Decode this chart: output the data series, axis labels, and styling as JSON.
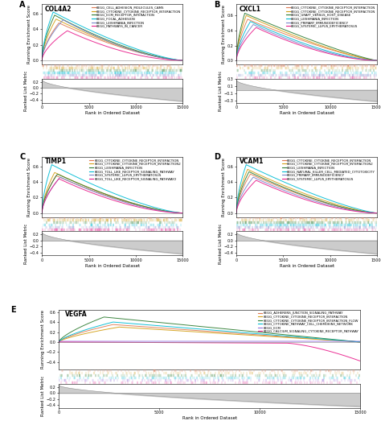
{
  "panels": [
    {
      "label": "A",
      "gene": "COL4A2",
      "legend_entries": [
        {
          "label": "KEGG_CELL_ADHESION_MOLECULES_CAMS",
          "color": "#e07b54"
        },
        {
          "label": "KEGG_CYTOKINE_CYTOKINE_RECEPTOR_INTERACTION",
          "color": "#d4a017"
        },
        {
          "label": "KEGG_ECM_RECEPTOR_INTERACTION",
          "color": "#2e7d32"
        },
        {
          "label": "KEGG_FOCAL_ADHESION",
          "color": "#00bcd4"
        },
        {
          "label": "KEGG_LEISHMANIA_INFECTION",
          "color": "#7986cb"
        },
        {
          "label": "KEGG_PATHWAYS_IN_CANCER",
          "color": "#e91e8c"
        }
      ],
      "es_peaks": [
        0.48,
        0.53,
        0.58,
        0.62,
        0.52,
        0.38
      ],
      "peak_fracs": [
        0.12,
        0.1,
        0.09,
        0.08,
        0.15,
        0.18
      ],
      "desc_exp": [
        1.5,
        1.5,
        1.5,
        1.4,
        1.6,
        1.8
      ],
      "ylim": [
        -0.05,
        0.72
      ],
      "yticks": [
        0.0,
        0.2,
        0.4,
        0.6
      ],
      "metric_ylim": [
        -0.5,
        0.3
      ],
      "metric_yticks": [
        -0.4,
        -0.2,
        0.0,
        0.2
      ]
    },
    {
      "label": "B",
      "gene": "CXCL1",
      "legend_entries": [
        {
          "label": "KEGG_CYTOKINE_CYTOKINE_RECEPTOR_INTERACTION",
          "color": "#e07b54"
        },
        {
          "label": "KEGG_CYTOKINE_CYTOKINE_RECEPTOR_INTERACTION",
          "color": "#d4a017"
        },
        {
          "label": "KEGG_GRAFT_VERSUS_HOST_DISEASE",
          "color": "#2e7d32"
        },
        {
          "label": "KEGG_LEISHMANIA_INFECTION",
          "color": "#00bcd4"
        },
        {
          "label": "KEGG_PRIMARY_IMMUNODEFICIENCY",
          "color": "#7986cb"
        },
        {
          "label": "KEGG_SYSTEMIC_LUPUS_ERYTHEMATOSUS",
          "color": "#e91e8c"
        }
      ],
      "es_peaks": [
        0.55,
        0.6,
        0.63,
        0.52,
        0.48,
        0.44
      ],
      "peak_fracs": [
        0.08,
        0.07,
        0.06,
        0.1,
        0.12,
        0.14
      ],
      "desc_exp": [
        1.3,
        1.3,
        1.2,
        1.5,
        1.6,
        1.7
      ],
      "ylim": [
        -0.05,
        0.75
      ],
      "yticks": [
        0.0,
        0.2,
        0.4,
        0.6
      ],
      "metric_ylim": [
        -0.35,
        0.3
      ],
      "metric_yticks": [
        -0.3,
        -0.1,
        0.1,
        0.3
      ]
    },
    {
      "label": "C",
      "gene": "TIMP1",
      "legend_entries": [
        {
          "label": "KEGG_CYTOKINE_CYTOKINE_RECEPTOR_INTERACTION",
          "color": "#e07b54"
        },
        {
          "label": "KEGG_CYTOKINE_CYTOKINE_RECEPTOR_INTERACTION2",
          "color": "#d4a017"
        },
        {
          "label": "KEGG_LEISHMANIA_INFECTION",
          "color": "#2e7d32"
        },
        {
          "label": "KEGG_TOLL_LIKE_RECEPTOR_SIGNALING_PATHWAY",
          "color": "#00bcd4"
        },
        {
          "label": "KEGG_SYSTEMIC_LUPUS_ERYTHEMATOSUS",
          "color": "#7986cb"
        },
        {
          "label": "KEGG_TOLL_LIKE_RECEPTOR_SIGNALING_PATHWAY2",
          "color": "#e91e8c"
        }
      ],
      "es_peaks": [
        0.48,
        0.52,
        0.5,
        0.62,
        0.46,
        0.44
      ],
      "peak_fracs": [
        0.1,
        0.09,
        0.11,
        0.07,
        0.13,
        0.12
      ],
      "desc_exp": [
        1.5,
        1.5,
        1.5,
        1.4,
        1.6,
        1.7
      ],
      "ylim": [
        -0.05,
        0.72
      ],
      "yticks": [
        0.0,
        0.2,
        0.4,
        0.6
      ],
      "metric_ylim": [
        -0.5,
        0.3
      ],
      "metric_yticks": [
        -0.4,
        -0.2,
        0.0,
        0.2
      ]
    },
    {
      "label": "D",
      "gene": "VCAM1",
      "legend_entries": [
        {
          "label": "KEGG_CYTOKINE_CYTOKINE_RECEPTOR_INTERACTION",
          "color": "#e07b54"
        },
        {
          "label": "KEGG_CYTOKINE_CYTOKINE_RECEPTOR_INTERACTION2",
          "color": "#d4a017"
        },
        {
          "label": "KEGG_LEISHMANIA_INFECTION",
          "color": "#2e7d32"
        },
        {
          "label": "KEGG_NATURAL_KILLER_CELL_MEDIATED_CYTOTOXICITY",
          "color": "#00bcd4"
        },
        {
          "label": "KEGG_PRIMARY_IMMUNODEFICIENCY",
          "color": "#7986cb"
        },
        {
          "label": "KEGG_SYSTEMIC_LUPUS_ERYTHEMATOSUS",
          "color": "#e91e8c"
        }
      ],
      "es_peaks": [
        0.5,
        0.56,
        0.53,
        0.62,
        0.46,
        0.42
      ],
      "peak_fracs": [
        0.1,
        0.08,
        0.09,
        0.07,
        0.12,
        0.14
      ],
      "desc_exp": [
        1.5,
        1.4,
        1.5,
        1.3,
        1.6,
        1.7
      ],
      "ylim": [
        -0.05,
        0.72
      ],
      "yticks": [
        0.0,
        0.2,
        0.4,
        0.6
      ],
      "metric_ylim": [
        -0.5,
        0.3
      ],
      "metric_yticks": [
        -0.4,
        -0.2,
        0.0,
        0.2
      ]
    },
    {
      "label": "E",
      "gene": "VEGFA",
      "legend_entries": [
        {
          "label": "KEGG_ADHERENS_JUNCTION_SIGNALING_PATHWAY",
          "color": "#e07b54"
        },
        {
          "label": "KEGG_CYTOKINE_CYTOKINE_RECEPTOR_INTERACTION",
          "color": "#d4a017"
        },
        {
          "label": "KEGG_CYTOKINE_CYTOKINE_RECEPTOR_INTERACTION_FLOW",
          "color": "#2e7d32"
        },
        {
          "label": "KEGG_CYTOKINE_PATHWAY_CELL_CHEMOKINE_NETWORK",
          "color": "#00bcd4"
        },
        {
          "label": "KEGG_ECM",
          "color": "#9370db"
        },
        {
          "label": "KEGG_CALCIUM_SIGNALING_CYTOKINE_RECEPTOR_PATHWAY",
          "color": "#e91e8c"
        }
      ],
      "es_peaks": [
        0.35,
        0.3,
        0.5,
        0.4,
        0.02,
        -0.38
      ],
      "peak_fracs": [
        0.18,
        0.2,
        0.15,
        0.18,
        0.55,
        0.88
      ],
      "desc_exp": [
        1.0,
        1.0,
        0.8,
        0.9,
        0.0,
        0.0
      ],
      "ylim": [
        -0.55,
        0.65
      ],
      "yticks": [
        -0.4,
        -0.2,
        0.0,
        0.2,
        0.4,
        0.6
      ],
      "metric_ylim": [
        -0.5,
        0.3
      ],
      "metric_yticks": [
        -0.4,
        -0.2,
        0.0,
        0.2
      ]
    }
  ],
  "n_genes": 15000,
  "xlabel": "Rank in Ordered Dataset",
  "es_ylabel": "Running Enrichment Score",
  "metric_ylabel": "Ranked List Metric",
  "background_color": "#ffffff",
  "line_width": 0.7,
  "tick_fontsize": 3.5,
  "label_fontsize": 4.0,
  "legend_fontsize": 2.8,
  "gene_fontsize": 5.5,
  "panel_label_fontsize": 7
}
